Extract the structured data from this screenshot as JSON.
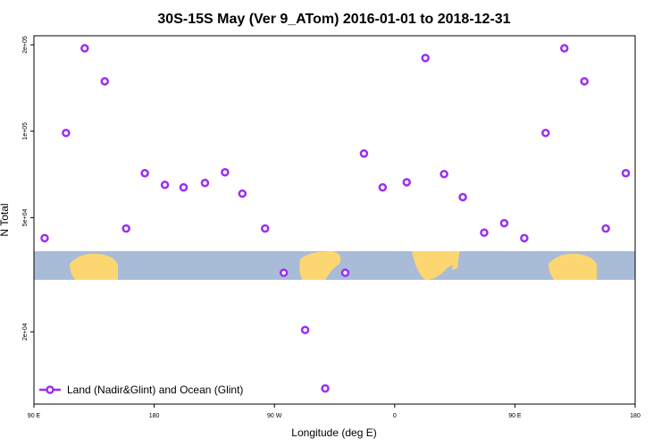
{
  "chart_data": {
    "type": "scatter",
    "title": "30S-15S May (Ver 9_ATom)   2016-01-01 to 2018-12-31",
    "x_label": "Longitude (deg E)",
    "y_label": "N Total",
    "xlim": [
      90,
      540
    ],
    "xticks": [
      {
        "value": 90,
        "label": "90 E"
      },
      180,
      {
        "value": 270,
        "label": "90 W"
      },
      {
        "value": 360,
        "label": "0"
      },
      {
        "value": 450,
        "label": "90 E"
      },
      {
        "value": 540,
        "label": "180"
      }
    ],
    "ylim": [
      11200,
      215000
    ],
    "yticks": [
      {
        "value": 20000,
        "label": "2e+04"
      },
      {
        "value": 50000,
        "label": "5e+04"
      },
      {
        "value": 100000,
        "label": "1e+05"
      },
      {
        "value": 200000,
        "label": "2e+05"
      }
    ],
    "log_y": true,
    "grid": false,
    "legend_position": "bottom-left",
    "series": [
      {
        "name": "Land (Nadir&Glint) and Ocean (Glint)",
        "color": "#9b2ff0",
        "x": [
          98,
          114,
          128,
          143,
          159,
          173,
          188,
          202,
          218,
          233,
          246,
          263,
          277,
          293,
          308,
          323,
          337,
          351,
          369,
          383,
          397,
          411,
          427,
          442,
          457,
          473,
          487,
          502,
          518,
          533
        ],
        "values": [
          42400,
          98600,
          194400,
          149200,
          45800,
          71400,
          65000,
          63700,
          66000,
          71900,
          60600,
          45800,
          32100,
          20300,
          12700,
          32100,
          83600,
          63700,
          66400,
          179900,
          70900,
          58900,
          44300,
          47800,
          42400,
          98600,
          194400,
          149200,
          45800,
          71400
        ]
      }
    ]
  }
}
